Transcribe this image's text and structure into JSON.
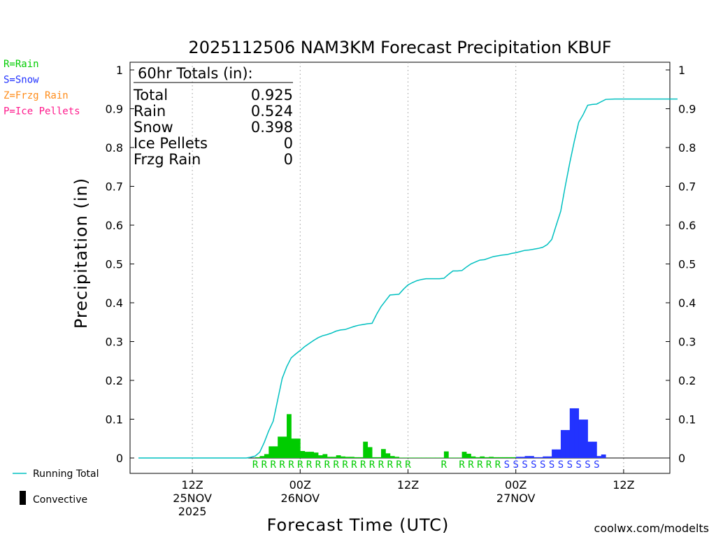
{
  "title": "2025112506 NAM3KM Forecast Precipitation KBUF",
  "colors": {
    "rain": "#00cc00",
    "snow": "#2233ff",
    "frzg_rain": "#ff8c1a",
    "ice_pellets": "#ff1a8c",
    "running_total": "#00c0c0",
    "credit": "#e0102a"
  },
  "ptype_legend": [
    {
      "label": "R=Rain",
      "color": "#00cc00"
    },
    {
      "label": "S=Snow",
      "color": "#2233ff"
    },
    {
      "label": "Z=Frzg Rain",
      "color": "#ff8c1a"
    },
    {
      "label": "P=Ice Pellets",
      "color": "#ff1a8c"
    }
  ],
  "totals": {
    "header": "60hr Totals (in):",
    "rows": [
      {
        "label": "Total",
        "value": "0.925"
      },
      {
        "label": "Rain",
        "value": "0.524"
      },
      {
        "label": "Snow",
        "value": "0.398"
      },
      {
        "label": "Ice Pellets",
        "value": "0"
      },
      {
        "label": "Frzg Rain",
        "value": "0"
      }
    ]
  },
  "legend": {
    "running_total": "Running Total",
    "convective": "Convective"
  },
  "credit": "coolwx.com/modelts",
  "chart_data": {
    "type": "bar",
    "title": "2025112506 NAM3KM Forecast Precipitation KBUF",
    "xlabel": "Forecast Time (UTC)",
    "ylabel": "Precipitation (in)",
    "ylim": [
      0,
      1
    ],
    "xlim_hours": [
      0,
      60
    ],
    "y_ticks": [
      "0",
      "0.1",
      "0.2",
      "0.3",
      "0.4",
      "0.5",
      "0.6",
      "0.7",
      "0.8",
      "0.9",
      "1"
    ],
    "x_ticks": [
      {
        "hour": 6,
        "lines": [
          "12Z",
          "25NOV",
          "2025"
        ]
      },
      {
        "hour": 18,
        "lines": [
          "00Z",
          "26NOV"
        ]
      },
      {
        "hour": 30,
        "lines": [
          "12Z"
        ]
      },
      {
        "hour": 42,
        "lines": [
          "00Z",
          "27NOV"
        ]
      },
      {
        "hour": 54,
        "lines": [
          "12Z"
        ]
      }
    ],
    "grid": "vertical dotted at tick hours",
    "series": [
      {
        "name": "Running Total",
        "type": "line",
        "color": "#00c0c0",
        "x": [
          0,
          12,
          12.5,
          13,
          13.5,
          14,
          14.5,
          15,
          15.5,
          16,
          16.5,
          17,
          17.5,
          18,
          18.5,
          19,
          19.5,
          20,
          20.5,
          21,
          21.5,
          22,
          22.5,
          23,
          23.5,
          24,
          24.5,
          25,
          25.5,
          26,
          26.5,
          27,
          27.5,
          28,
          28.5,
          29,
          29.5,
          30,
          30.5,
          31,
          31.5,
          32,
          32.5,
          33,
          33.5,
          34,
          34.5,
          35,
          35.5,
          36,
          36.5,
          37,
          37.5,
          38,
          38.5,
          39,
          39.5,
          40,
          40.5,
          41,
          41.5,
          42,
          42.5,
          43,
          43.5,
          44,
          44.5,
          45,
          45.5,
          46,
          46.5,
          47,
          47.5,
          48,
          48.5,
          49,
          49.5,
          50,
          50.5,
          51,
          51.5,
          52,
          53,
          60
        ],
        "values": [
          0,
          0,
          0.002,
          0.005,
          0.015,
          0.04,
          0.07,
          0.095,
          0.15,
          0.205,
          0.235,
          0.258,
          0.268,
          0.277,
          0.287,
          0.295,
          0.303,
          0.31,
          0.315,
          0.318,
          0.322,
          0.327,
          0.33,
          0.331,
          0.335,
          0.339,
          0.342,
          0.344,
          0.346,
          0.347,
          0.37,
          0.39,
          0.405,
          0.42,
          0.421,
          0.422,
          0.435,
          0.446,
          0.452,
          0.457,
          0.46,
          0.462,
          0.462,
          0.462,
          0.462,
          0.463,
          0.473,
          0.482,
          0.482,
          0.483,
          0.492,
          0.5,
          0.505,
          0.51,
          0.511,
          0.515,
          0.519,
          0.521,
          0.523,
          0.524,
          0.527,
          0.529,
          0.532,
          0.535,
          0.536,
          0.538,
          0.54,
          0.543,
          0.55,
          0.563,
          0.6,
          0.636,
          0.7,
          0.76,
          0.815,
          0.865,
          0.885,
          0.909,
          0.911,
          0.912,
          0.918,
          0.924,
          0.925,
          0.925
        ]
      },
      {
        "name": "Rain",
        "type": "bar",
        "color": "#00cc00",
        "x": [
          13,
          13.5,
          14,
          14.5,
          15,
          15.5,
          16,
          16.5,
          17,
          17.5,
          18,
          18.5,
          19,
          19.5,
          20,
          20.5,
          21,
          21.5,
          22,
          22.5,
          23,
          23.5,
          24,
          24.5,
          25,
          25.5,
          26,
          26.5,
          27,
          27.5,
          28,
          28.5,
          29,
          29.5,
          30,
          30.5,
          31,
          31.5,
          32,
          32.5,
          33,
          33.5,
          34,
          34.5,
          35,
          35.5,
          36,
          36.5,
          37,
          37.5,
          38,
          38.5,
          39,
          39.5,
          40,
          40.5,
          41,
          41.5
        ],
        "values": [
          0.002,
          0.005,
          0.01,
          0.03,
          0.03,
          0.055,
          0.055,
          0.113,
          0.05,
          0.05,
          0.018,
          0.016,
          0.016,
          0.014,
          0.007,
          0.01,
          0.003,
          0.003,
          0.007,
          0.004,
          0.003,
          0.003,
          0.002,
          0.002,
          0.042,
          0.028,
          0.002,
          0.002,
          0.023,
          0.012,
          0.005,
          0.003,
          0.001,
          0.001,
          0.001,
          0.001,
          0.001,
          0.001,
          0.001,
          0.001,
          0.001,
          0.001,
          0.017,
          0.001,
          0.001,
          0.001,
          0.016,
          0.011,
          0.004,
          0.002,
          0.004,
          0.002,
          0.003,
          0.002,
          0.002,
          0.002,
          0.002,
          0.002
        ]
      },
      {
        "name": "Snow",
        "type": "bar",
        "color": "#2233ff",
        "x": [
          42,
          42.5,
          43,
          43.5,
          44,
          44.5,
          45,
          45.5,
          46,
          46.5,
          47,
          47.5,
          48,
          48.5,
          49,
          49.5,
          50,
          50.5,
          51,
          51.5
        ],
        "values": [
          0.003,
          0.003,
          0.005,
          0.005,
          0.002,
          0.002,
          0.004,
          0.004,
          0.022,
          0.022,
          0.072,
          0.072,
          0.128,
          0.128,
          0.099,
          0.099,
          0.042,
          0.042,
          0.005,
          0.009
        ]
      }
    ],
    "ptype_row": {
      "rain_hours": [
        13,
        14,
        15,
        16,
        17,
        18,
        19,
        20,
        21,
        22,
        23,
        24,
        25,
        26,
        27,
        28,
        29,
        30,
        34,
        36,
        37,
        38,
        39,
        40
      ],
      "rain_letter": "R",
      "snow_hours": [
        41,
        42,
        43,
        44,
        45,
        46,
        47,
        48,
        49,
        50,
        51
      ],
      "snow_letter": "S"
    }
  }
}
